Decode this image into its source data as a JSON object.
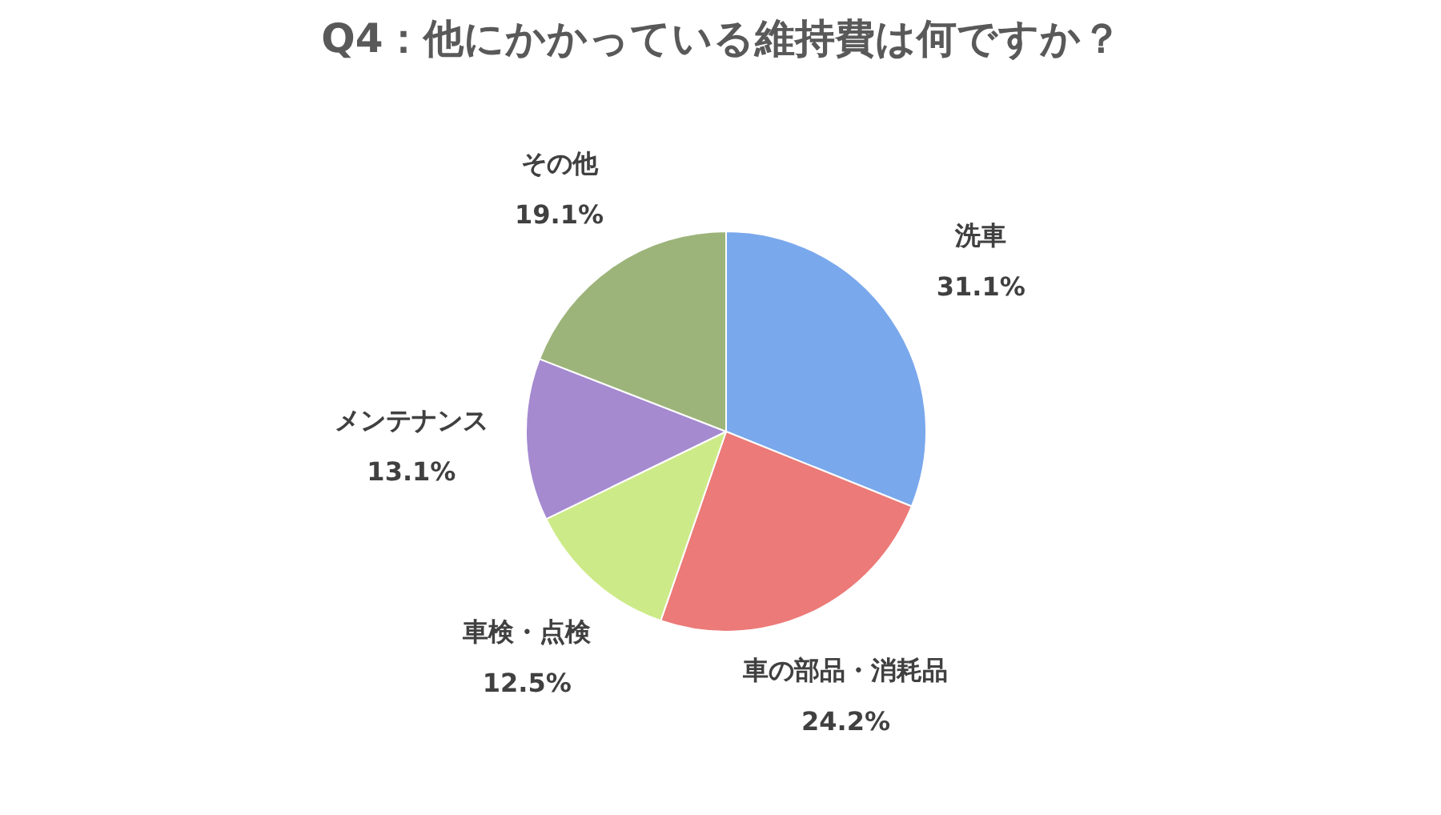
{
  "chart_data": {
    "type": "pie",
    "title": "Q4：他にかかっている維持費は何ですか？",
    "categories": [
      "洗車",
      "車の部品・消耗品",
      "車検・点検",
      "メンテナンス",
      "その他"
    ],
    "values": [
      31.1,
      24.2,
      12.5,
      13.1,
      19.1
    ],
    "value_labels": [
      "31.1%",
      "24.2%",
      "12.5%",
      "13.1%",
      "19.1%"
    ],
    "colors": [
      "#7aa8ec",
      "#ec7a78",
      "#cdea88",
      "#a58ad0",
      "#9cb47a"
    ]
  }
}
